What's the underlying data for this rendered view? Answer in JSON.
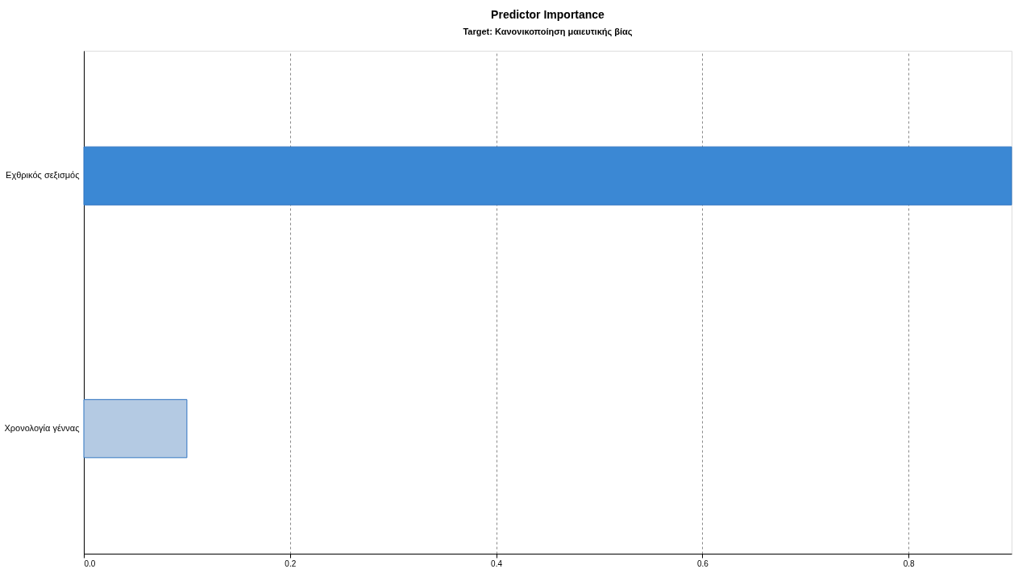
{
  "chart_data": {
    "type": "bar",
    "orientation": "horizontal",
    "title": "Predictor Importance",
    "subtitle": "Target: Κανονικοποίηση μαιευτικής βίας",
    "categories": [
      "Εχθρικός σεξισμός",
      "Χρονολογία γέννας"
    ],
    "values": [
      0.9,
      0.1
    ],
    "colors": [
      "#3b88d4",
      "#b4cae3"
    ],
    "xlim": [
      0,
      0.9
    ],
    "xticks": [
      {
        "value": 0,
        "label": "0.0"
      },
      0.2,
      0.4,
      0.6,
      0.8
    ],
    "grid": "x"
  }
}
